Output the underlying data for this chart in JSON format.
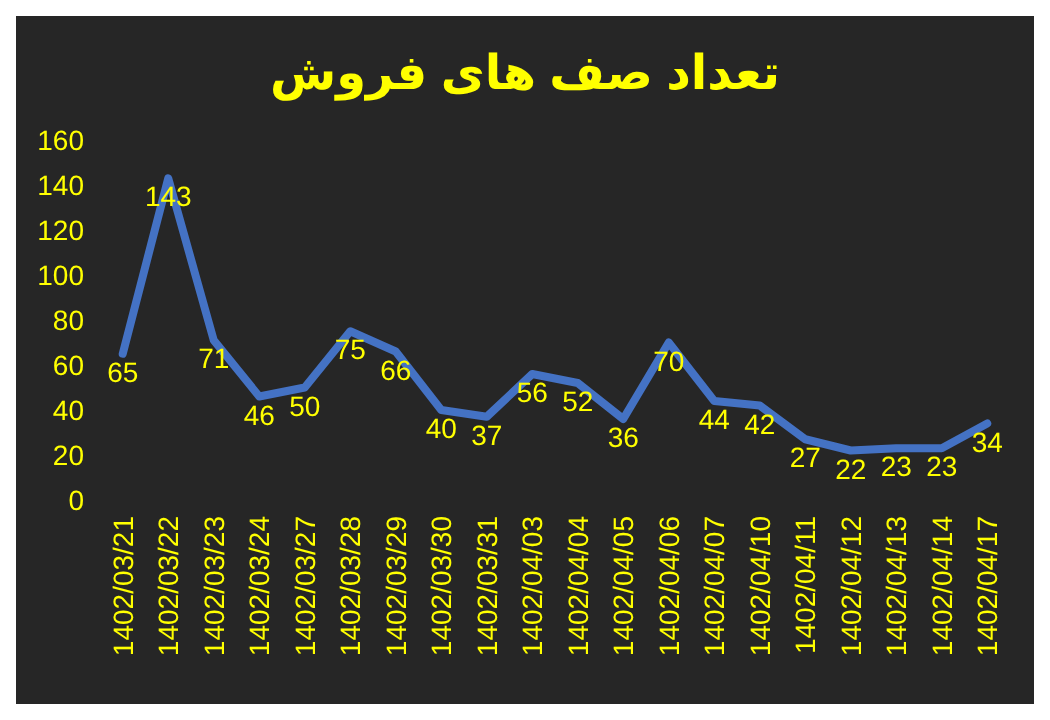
{
  "chart_data": {
    "type": "line",
    "title": "تعداد صف های فروش",
    "categories": [
      "1402/03/21",
      "1402/03/22",
      "1402/03/23",
      "1402/03/24",
      "1402/03/27",
      "1402/03/28",
      "1402/03/29",
      "1402/03/30",
      "1402/03/31",
      "1402/04/03",
      "1402/04/04",
      "1402/04/05",
      "1402/04/06",
      "1402/04/07",
      "1402/04/10",
      "1402/04/11",
      "1402/04/12",
      "1402/04/13",
      "1402/04/14",
      "1402/04/17"
    ],
    "values": [
      65,
      143,
      71,
      46,
      50,
      75,
      66,
      40,
      37,
      56,
      52,
      36,
      70,
      44,
      42,
      27,
      22,
      23,
      23,
      34
    ],
    "color": "#4472c4",
    "ylim": [
      0,
      160
    ],
    "yticks": [
      0,
      20,
      40,
      60,
      80,
      100,
      120,
      140,
      160
    ],
    "grid": false,
    "data_labels": true,
    "marker": "none",
    "line_style": "solid"
  }
}
